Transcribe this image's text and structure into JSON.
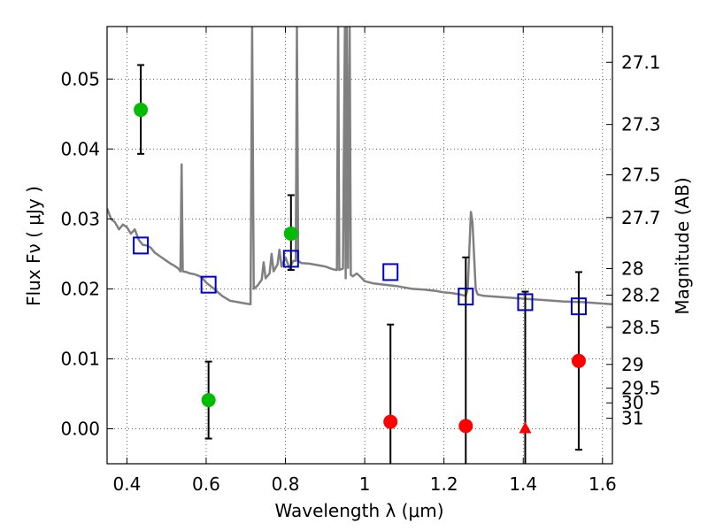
{
  "chart_data": {
    "type": "scatter",
    "xlabel": "Wavelength  λ (μm)",
    "ylabel": "Flux  Fν  ( μJy )",
    "ylabel_right": "Magnitude (AB)",
    "xlim": [
      0.35,
      1.625
    ],
    "ylim": [
      -0.005,
      0.0575
    ],
    "grid": true,
    "x_ticks": [
      0.4,
      0.6,
      0.8,
      1.0,
      1.2,
      1.4,
      1.6
    ],
    "x_tick_labels": [
      "0.4",
      "0.6",
      "0.8",
      "1",
      "1.2",
      "1.4",
      "1.6"
    ],
    "y_ticks": [
      0.0,
      0.01,
      0.02,
      0.03,
      0.04,
      0.05
    ],
    "y_tick_labels": [
      "0.00",
      "0.01",
      "0.02",
      "0.03",
      "0.04",
      "0.05"
    ],
    "right_ticks": [
      {
        "label": "27.1",
        "flux": 0.0524
      },
      {
        "label": "27.3",
        "flux": 0.0435
      },
      {
        "label": "27.5",
        "flux": 0.0363
      },
      {
        "label": "27.7",
        "flux": 0.0302
      },
      {
        "label": "28",
        "flux": 0.0229
      },
      {
        "label": "28.2",
        "flux": 0.0191
      },
      {
        "label": "28.5",
        "flux": 0.0145
      },
      {
        "label": "29",
        "flux": 0.0092
      },
      {
        "label": "29.5",
        "flux": 0.0058
      },
      {
        "label": "30",
        "flux": 0.0037
      },
      {
        "label": "31",
        "flux": 0.0015
      }
    ],
    "colors": {
      "green": "#00bb00",
      "red": "#ff0000",
      "blue": "#0000cc",
      "sed": "#808080",
      "errorbar": "#000000"
    },
    "series": [
      {
        "marker": "circle",
        "color": "green",
        "points": [
          {
            "x": 0.435,
            "y": 0.0456,
            "err_lo": 0.0393,
            "err_hi": 0.052
          },
          {
            "x": 0.606,
            "y": 0.0041,
            "err_lo": -0.0014,
            "err_hi": 0.0096
          },
          {
            "x": 0.814,
            "y": 0.0279,
            "err_lo": 0.0227,
            "err_hi": 0.0334
          }
        ]
      },
      {
        "marker": "circle",
        "color": "red",
        "points": [
          {
            "x": 1.065,
            "y": 0.001,
            "err_lo": -0.005,
            "err_hi": 0.0149
          },
          {
            "x": 1.255,
            "y": 0.0004,
            "err_lo": -0.005,
            "err_hi": 0.0245
          },
          {
            "x": 1.54,
            "y": 0.0097,
            "err_lo": -0.003,
            "err_hi": 0.0224
          }
        ]
      },
      {
        "marker": "triangle",
        "color": "red",
        "points": [
          {
            "x": 1.405,
            "y": 0.0,
            "err_lo": -0.005,
            "err_hi": 0.0196
          }
        ]
      },
      {
        "marker": "open-square",
        "color": "blue",
        "points": [
          {
            "x": 0.435,
            "y": 0.0262
          },
          {
            "x": 0.606,
            "y": 0.0206
          },
          {
            "x": 0.814,
            "y": 0.0243
          },
          {
            "x": 1.065,
            "y": 0.0224
          },
          {
            "x": 1.255,
            "y": 0.0189
          },
          {
            "x": 1.405,
            "y": 0.0181
          },
          {
            "x": 1.54,
            "y": 0.0175
          }
        ]
      },
      {
        "marker": "line",
        "color": "sed",
        "points": [
          [
            0.35,
            0.0315
          ],
          [
            0.36,
            0.03
          ],
          [
            0.37,
            0.0295
          ],
          [
            0.38,
            0.0285
          ],
          [
            0.39,
            0.0292
          ],
          [
            0.4,
            0.0288
          ],
          [
            0.41,
            0.0279
          ],
          [
            0.42,
            0.0285
          ],
          [
            0.43,
            0.027
          ],
          [
            0.44,
            0.0263
          ],
          [
            0.45,
            0.0262
          ],
          [
            0.46,
            0.0259
          ],
          [
            0.47,
            0.0252
          ],
          [
            0.48,
            0.0248
          ],
          [
            0.49,
            0.0244
          ],
          [
            0.5,
            0.024
          ],
          [
            0.51,
            0.0236
          ],
          [
            0.52,
            0.0233
          ],
          [
            0.53,
            0.0229
          ],
          [
            0.535,
            0.0225
          ],
          [
            0.538,
            0.0378
          ],
          [
            0.541,
            0.0225
          ],
          [
            0.55,
            0.0224
          ],
          [
            0.56,
            0.0222
          ],
          [
            0.57,
            0.0221
          ],
          [
            0.58,
            0.0219
          ],
          [
            0.59,
            0.0216
          ],
          [
            0.6,
            0.0209
          ],
          [
            0.62,
            0.02
          ],
          [
            0.64,
            0.019
          ],
          [
            0.66,
            0.0183
          ],
          [
            0.68,
            0.0181
          ],
          [
            0.7,
            0.0179
          ],
          [
            0.712,
            0.0178
          ],
          [
            0.716,
            0.0575
          ],
          [
            0.72,
            0.02
          ],
          [
            0.73,
            0.0205
          ],
          [
            0.74,
            0.0213
          ],
          [
            0.745,
            0.0238
          ],
          [
            0.75,
            0.0215
          ],
          [
            0.76,
            0.0222
          ],
          [
            0.765,
            0.025
          ],
          [
            0.77,
            0.0225
          ],
          [
            0.78,
            0.0235
          ],
          [
            0.785,
            0.0256
          ],
          [
            0.79,
            0.0232
          ],
          [
            0.8,
            0.0245
          ],
          [
            0.81,
            0.023
          ],
          [
            0.82,
            0.024
          ],
          [
            0.826,
            0.024
          ],
          [
            0.829,
            0.0575
          ],
          [
            0.832,
            0.024
          ],
          [
            0.84,
            0.0237
          ],
          [
            0.86,
            0.0236
          ],
          [
            0.88,
            0.0234
          ],
          [
            0.9,
            0.0232
          ],
          [
            0.92,
            0.0228
          ],
          [
            0.93,
            0.0227
          ],
          [
            0.933,
            0.0575
          ],
          [
            0.936,
            0.0227
          ],
          [
            0.945,
            0.0229
          ],
          [
            0.95,
            0.0575
          ],
          [
            0.952,
            0.0215
          ],
          [
            0.955,
            0.0575
          ],
          [
            0.958,
            0.023
          ],
          [
            0.962,
            0.0575
          ],
          [
            0.965,
            0.022
          ],
          [
            0.97,
            0.0218
          ],
          [
            0.98,
            0.0222
          ],
          [
            0.99,
            0.0217
          ],
          [
            1.0,
            0.0211
          ],
          [
            1.02,
            0.0208
          ],
          [
            1.05,
            0.0206
          ],
          [
            1.08,
            0.0204
          ],
          [
            1.1,
            0.0202
          ],
          [
            1.12,
            0.02
          ],
          [
            1.15,
            0.0199
          ],
          [
            1.18,
            0.0197
          ],
          [
            1.2,
            0.0195
          ],
          [
            1.22,
            0.0194
          ],
          [
            1.24,
            0.0192
          ],
          [
            1.255,
            0.019
          ],
          [
            1.26,
            0.02
          ],
          [
            1.268,
            0.031
          ],
          [
            1.272,
            0.0295
          ],
          [
            1.28,
            0.02
          ],
          [
            1.285,
            0.0192
          ],
          [
            1.3,
            0.019
          ],
          [
            1.35,
            0.0188
          ],
          [
            1.4,
            0.0186
          ],
          [
            1.45,
            0.0184
          ],
          [
            1.5,
            0.0182
          ],
          [
            1.55,
            0.0181
          ],
          [
            1.6,
            0.0179
          ],
          [
            1.625,
            0.0178
          ]
        ]
      }
    ]
  }
}
